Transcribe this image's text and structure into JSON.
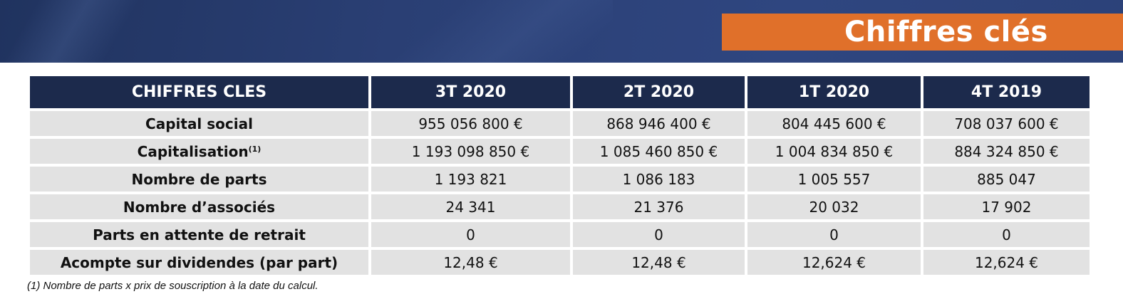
{
  "header": {
    "title": "Chiffres clés",
    "colors": {
      "banner": "#2a3f74",
      "title_box": "#e0702a"
    }
  },
  "table": {
    "columns": [
      "CHIFFRES CLES",
      "3T 2020",
      "2T 2020",
      "1T 2020",
      "4T 2019"
    ],
    "rows": [
      {
        "label": "Capital social",
        "note": "",
        "values": [
          "955 056 800 €",
          "868 946 400 €",
          "804 445 600 €",
          "708 037 600 €"
        ]
      },
      {
        "label": "Capitalisation",
        "note": "(1)",
        "values": [
          "1 193 098 850 €",
          "1 085 460 850 €",
          "1 004 834 850 €",
          "884 324 850 €"
        ]
      },
      {
        "label": "Nombre de parts",
        "note": "",
        "values": [
          "1 193 821",
          "1 086 183",
          "1 005 557",
          "885 047"
        ]
      },
      {
        "label": "Nombre d’associés",
        "note": "",
        "values": [
          "24 341",
          "21 376",
          "20 032",
          "17 902"
        ]
      },
      {
        "label": "Parts en attente de retrait",
        "note": "",
        "values": [
          "0",
          "0",
          "0",
          "0"
        ]
      },
      {
        "label": "Acompte sur dividendes (par part)",
        "note": "",
        "values": [
          "12,48 €",
          "12,48 €",
          "12,624 €",
          "12,624 €"
        ]
      }
    ],
    "colors": {
      "header_bg": "#1c2a4c",
      "cell_bg": "#e2e2e2"
    }
  },
  "footnote": "(1) Nombre de parts x prix de souscription à la date du calcul."
}
